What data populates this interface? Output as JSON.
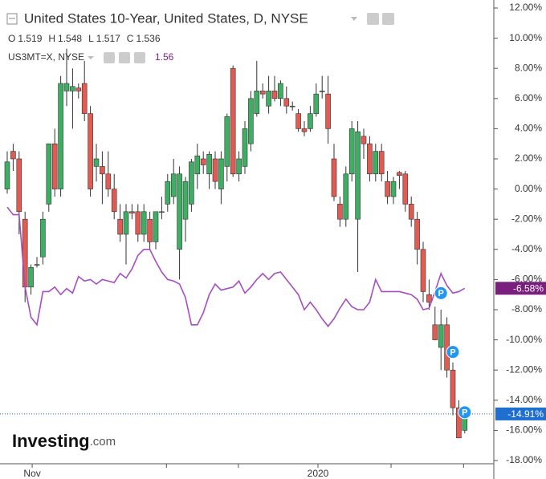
{
  "chart_data": {
    "type": "candlestick",
    "series": [
      {
        "name": "United States 10-Year, United States, D, NYSE",
        "type": "candlestick",
        "up_color": "#3dae63",
        "down_color": "#e15b52",
        "ohlc_labels": [
          {
            "label": "O",
            "value": 1.519
          },
          {
            "label": "H",
            "value": 1.548
          },
          {
            "label": "L",
            "value": 1.517
          },
          {
            "label": "C",
            "value": 1.536
          }
        ],
        "ohlc": [
          [
            0,
            2.5,
            -0.3,
            1.8
          ],
          [
            2.5,
            3,
            1.2,
            2
          ],
          [
            2,
            2.5,
            -3,
            -1.5
          ],
          [
            -2,
            -1.5,
            -7.5,
            -6.5
          ],
          [
            -6.5,
            -5,
            -7,
            -5.2
          ],
          [
            -5,
            -4.5,
            -5.2,
            -5
          ],
          [
            -4.5,
            -1.5,
            -5,
            -2
          ],
          [
            -1,
            3,
            -1.5,
            3
          ],
          [
            3,
            4,
            -0.5,
            0
          ],
          [
            0,
            7.5,
            -0.5,
            7
          ],
          [
            6.5,
            9.3,
            5.5,
            7
          ],
          [
            6.5,
            8,
            4,
            6.8
          ],
          [
            6.7,
            7,
            6,
            6.5
          ],
          [
            7,
            8.5,
            4.5,
            5
          ],
          [
            5,
            5.5,
            -0.5,
            0
          ],
          [
            1.5,
            3,
            0.5,
            2
          ],
          [
            1.5,
            2.5,
            -1,
            1
          ],
          [
            1,
            2.5,
            -0.5,
            0
          ],
          [
            0,
            1,
            -2,
            -1.5
          ],
          [
            -2,
            -1,
            -3.5,
            -3
          ],
          [
            -3,
            -1,
            -5,
            -1.5
          ],
          [
            -1.5,
            -1,
            -2,
            -1.6
          ],
          [
            -1.5,
            -1,
            -3.5,
            -3
          ],
          [
            -3,
            -1,
            -3.5,
            -1.5
          ],
          [
            -2,
            -1.5,
            -4,
            -3.5
          ],
          [
            -3.5,
            -1.5,
            -4,
            -1.5
          ],
          [
            -1.5,
            -0.5,
            -2,
            -1.5
          ],
          [
            -1,
            1,
            -1.5,
            0.5
          ],
          [
            -0.5,
            2,
            -1,
            1
          ],
          [
            -4,
            1.5,
            -6,
            1
          ],
          [
            -2,
            0.8,
            -3.5,
            0.5
          ],
          [
            -1,
            2,
            -1.5,
            1.8
          ],
          [
            1,
            3,
            0,
            2.2
          ],
          [
            2,
            2.5,
            1,
            1.6
          ],
          [
            1,
            2.5,
            0,
            2.3
          ],
          [
            2,
            2.5,
            0,
            0.5
          ],
          [
            0,
            2.5,
            -1,
            2
          ],
          [
            1.5,
            5,
            0.5,
            4.8
          ],
          [
            8,
            8.2,
            0.8,
            1
          ],
          [
            1,
            2.5,
            0.5,
            2
          ],
          [
            1.5,
            4.5,
            1,
            4
          ],
          [
            3,
            6.5,
            2.5,
            6
          ],
          [
            5,
            8.5,
            4.8,
            6.5
          ],
          [
            6.5,
            7,
            6,
            6.3
          ],
          [
            5.5,
            7.5,
            5,
            6.5
          ],
          [
            6.5,
            7.5,
            5.8,
            6
          ],
          [
            6,
            7.2,
            5.5,
            7
          ],
          [
            6,
            6.8,
            5,
            5.5
          ],
          [
            5.5,
            5.8,
            5.2,
            5.5
          ],
          [
            5,
            5.3,
            3.8,
            4
          ],
          [
            4,
            4.5,
            3.5,
            3.8
          ],
          [
            4,
            5.5,
            3.8,
            5
          ],
          [
            5,
            7,
            4.8,
            6.3
          ],
          [
            6.5,
            7.5,
            6,
            6.5
          ],
          [
            6.3,
            7.5,
            3,
            4
          ],
          [
            2,
            3,
            -0.8,
            -0.5
          ],
          [
            -1,
            -0.5,
            -2.5,
            -2
          ],
          [
            -2,
            1.5,
            -2.5,
            1
          ],
          [
            1,
            4.5,
            0.5,
            4
          ],
          [
            -2,
            4.5,
            -5.5,
            3.8
          ],
          [
            3.5,
            4,
            2,
            3
          ],
          [
            3,
            3.5,
            0.5,
            1
          ],
          [
            1,
            3,
            0.5,
            2.5
          ],
          [
            2.5,
            3,
            0.5,
            1
          ],
          [
            0.5,
            1.2,
            -1,
            -0.5
          ],
          [
            -0.5,
            0.8,
            -1,
            0.5
          ],
          [
            1.1,
            1.2,
            0,
            0.9
          ],
          [
            1,
            1.2,
            -1.5,
            -1
          ],
          [
            -1,
            -0.5,
            -2.5,
            -2
          ],
          [
            -2,
            -1.5,
            -5,
            -4
          ],
          [
            -4,
            -3.5,
            -7.5,
            -6.8
          ],
          [
            -7,
            -6,
            -8,
            -7.5
          ],
          [
            -9,
            -7.8,
            -10,
            -10
          ],
          [
            -10.5,
            -8,
            -12,
            -9
          ],
          [
            -9,
            -8.5,
            -12.5,
            -12
          ],
          [
            -12,
            -11.5,
            -15,
            -14.5
          ],
          [
            -14.5,
            -14,
            -16.5,
            -16.5
          ],
          [
            -16,
            -14.8,
            -16.2,
            -14.91
          ]
        ]
      },
      {
        "name": "US3MT=X, NYSE",
        "type": "line",
        "color": "#a64dc0",
        "last": 1.56,
        "values": [
          -1.2,
          -1.7,
          -1.7,
          -6.5,
          -8.5,
          -9,
          -6.8,
          -6.8,
          -6.5,
          -7,
          -6.6,
          -6.9,
          -5.8,
          -6.1,
          -6,
          -6.3,
          -6,
          -6.1,
          -6.2,
          -5.6,
          -5.9,
          -5.3,
          -4.4,
          -4,
          -4,
          -4.8,
          -5.5,
          -6,
          -6.1,
          -6.3,
          -7.2,
          -9,
          -9,
          -8.2,
          -7,
          -6.3,
          -6.7,
          -6.6,
          -6.5,
          -6.1,
          -6.9,
          -6.5,
          -6,
          -5.6,
          -6,
          -5.6,
          -5.5,
          -6,
          -6.5,
          -7,
          -8,
          -7.5,
          -8,
          -8.6,
          -9.1,
          -8.6,
          -7.9,
          -7.3,
          -7.8,
          -8,
          -8,
          -7.5,
          -6,
          -6.8,
          -6.8,
          -6.8,
          -6.8,
          -6.9,
          -7,
          -7.3,
          -8,
          -7.9,
          -6.8,
          -5.6,
          -6.4,
          -6.9,
          -6.8,
          -6.58
        ]
      }
    ],
    "price_tags": [
      {
        "value": -6.58,
        "label": "-6.58%",
        "color": "#7b1f7e"
      },
      {
        "value": -14.91,
        "label": "-14.91%",
        "color": "#1f6fd1"
      }
    ],
    "markers": [
      {
        "label": "P",
        "x": 73,
        "y": -6.9
      },
      {
        "label": "P",
        "x": 75,
        "y": -10.8
      },
      {
        "label": "P",
        "x": 77,
        "y": -14.8
      }
    ],
    "ylim": [
      -18,
      12
    ],
    "yticks": [
      {
        "value": 12,
        "label": "12.00%"
      },
      {
        "value": 10,
        "label": "10.00%"
      },
      {
        "value": 8,
        "label": "8.00%"
      },
      {
        "value": 6,
        "label": "6.00%"
      },
      {
        "value": 4,
        "label": "4.00%"
      },
      {
        "value": 2,
        "label": "2.00%"
      },
      {
        "value": 0,
        "label": "0.00%"
      },
      {
        "value": -2,
        "label": "-2.00%"
      },
      {
        "value": -4,
        "label": "-4.00%"
      },
      {
        "value": -6,
        "label": "-6.00%"
      },
      {
        "value": -8,
        "label": "-8.00%"
      },
      {
        "value": -10,
        "label": "-10.00%"
      },
      {
        "value": -12,
        "label": "-12.00%"
      },
      {
        "value": -14,
        "label": "-14.00%"
      },
      {
        "value": -16,
        "label": "-16.00%"
      },
      {
        "value": -18,
        "label": "-18.00%"
      }
    ],
    "xticks": [
      {
        "value": 4.2,
        "label": "Nov"
      },
      {
        "value": 52.3,
        "label": "2020"
      }
    ],
    "minor_xticks": [
      26.8,
      38.9,
      64.6,
      76.8
    ],
    "logo": {
      "brand": "Investing",
      "suffix": ".com"
    }
  }
}
